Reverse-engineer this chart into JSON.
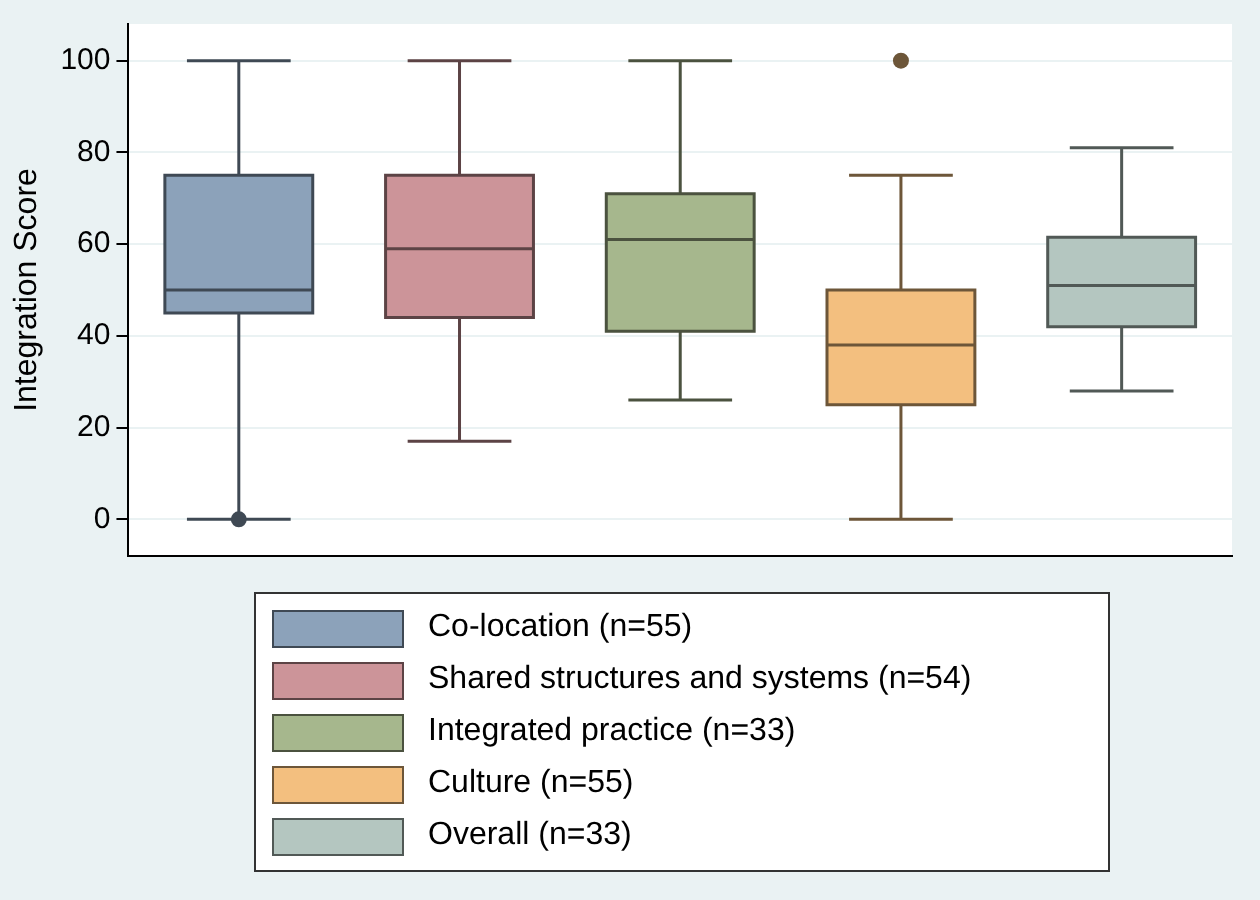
{
  "chart_data": {
    "type": "box",
    "ylabel": "Integration Score",
    "categories": [
      null,
      null,
      null,
      null,
      null
    ],
    "series": [
      {
        "name": "Co-location (n=55)",
        "color": "#8ca2ba",
        "boxes": [
          {
            "low": 0,
            "q1": 45,
            "median": 50,
            "q3": 75,
            "high": 100,
            "outliers": [
              0
            ]
          },
          null,
          null,
          null,
          null
        ]
      },
      {
        "name": "Shared structures and systems (n=54)",
        "color": "#cc9499",
        "boxes": [
          null,
          {
            "low": 17,
            "q1": 44,
            "median": 59,
            "q3": 75,
            "high": 100
          },
          null,
          null,
          null
        ]
      },
      {
        "name": "Integrated practice (n=33)",
        "color": "#a6b78d",
        "boxes": [
          null,
          null,
          {
            "low": 26,
            "q1": 41,
            "median": 61,
            "q3": 71,
            "high": 100
          },
          null,
          null
        ]
      },
      {
        "name": "Culture (n=55)",
        "color": "#f3bf7f",
        "boxes": [
          null,
          null,
          null,
          {
            "low": 0,
            "q1": 25,
            "median": 38,
            "q3": 50,
            "high": 75,
            "outliers": [
              100
            ]
          },
          null
        ]
      },
      {
        "name": "Overall (n=33)",
        "color": "#b4c6c0",
        "boxes": [
          null,
          null,
          null,
          null,
          {
            "low": 28,
            "q1": 42,
            "median": 51,
            "q3": 61.5,
            "high": 81
          }
        ]
      }
    ],
    "ylim": [
      -8,
      108
    ],
    "yticks": [
      0,
      20,
      40,
      60,
      80,
      100
    ],
    "grid": "y",
    "legend": "bottom"
  }
}
